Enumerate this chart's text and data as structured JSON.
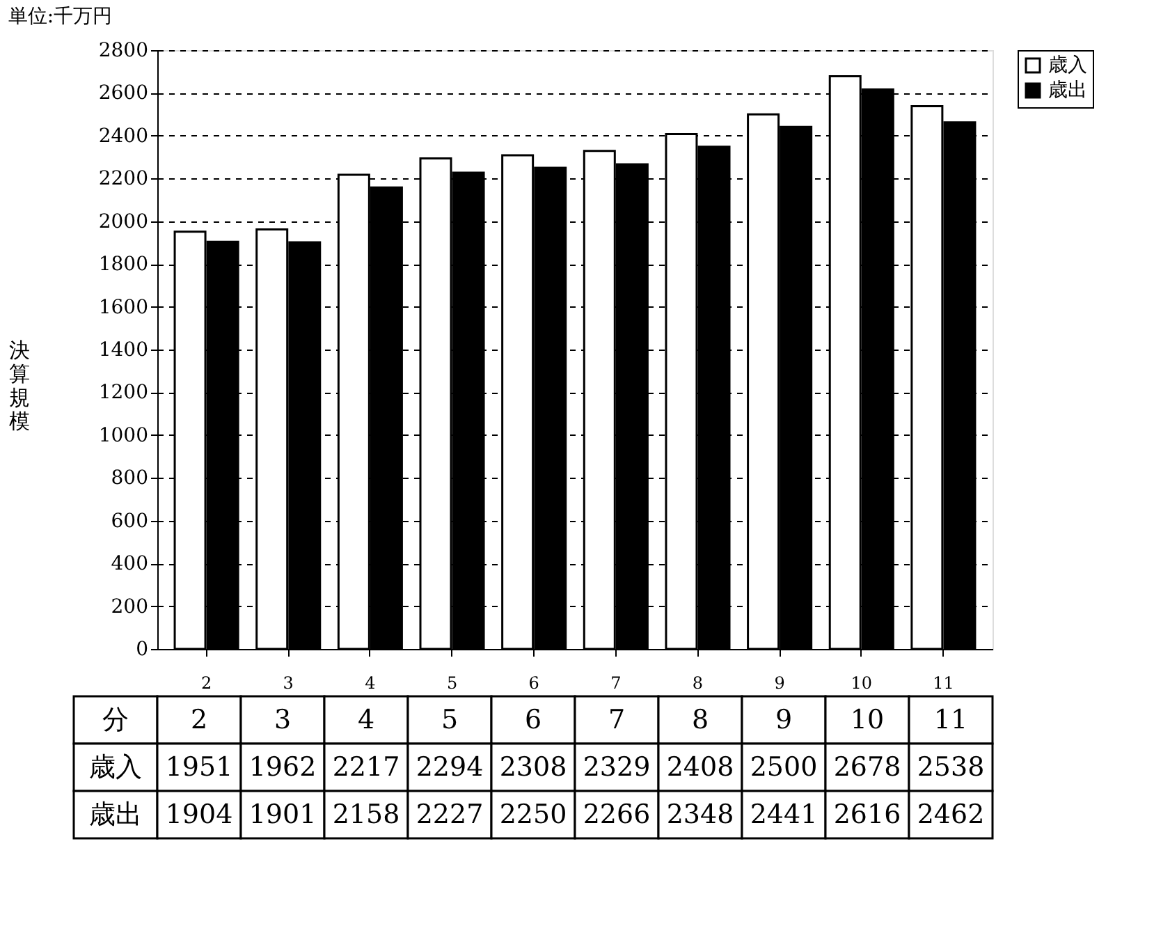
{
  "chart_data": {
    "type": "bar",
    "title": "単位:千万円",
    "ylabel": "決算規模",
    "categories": [
      "2",
      "3",
      "4",
      "5",
      "6",
      "7",
      "8",
      "9",
      "10",
      "11"
    ],
    "series": [
      {
        "name": "歳入",
        "color": "#ffffff",
        "values": [
          1951,
          1962,
          2217,
          2294,
          2308,
          2329,
          2408,
          2500,
          2678,
          2538
        ]
      },
      {
        "name": "歳出",
        "color": "#000000",
        "values": [
          1904,
          1901,
          2158,
          2227,
          2250,
          2266,
          2348,
          2441,
          2616,
          2462
        ]
      }
    ],
    "ylim": [
      0,
      2800
    ],
    "yticks": [
      0,
      200,
      400,
      600,
      800,
      1000,
      1200,
      1400,
      1600,
      1800,
      2000,
      2200,
      2400,
      2600,
      2800
    ],
    "grid": "y",
    "legend": "right",
    "data_labels": true,
    "annotations": [
      "分"
    ]
  }
}
